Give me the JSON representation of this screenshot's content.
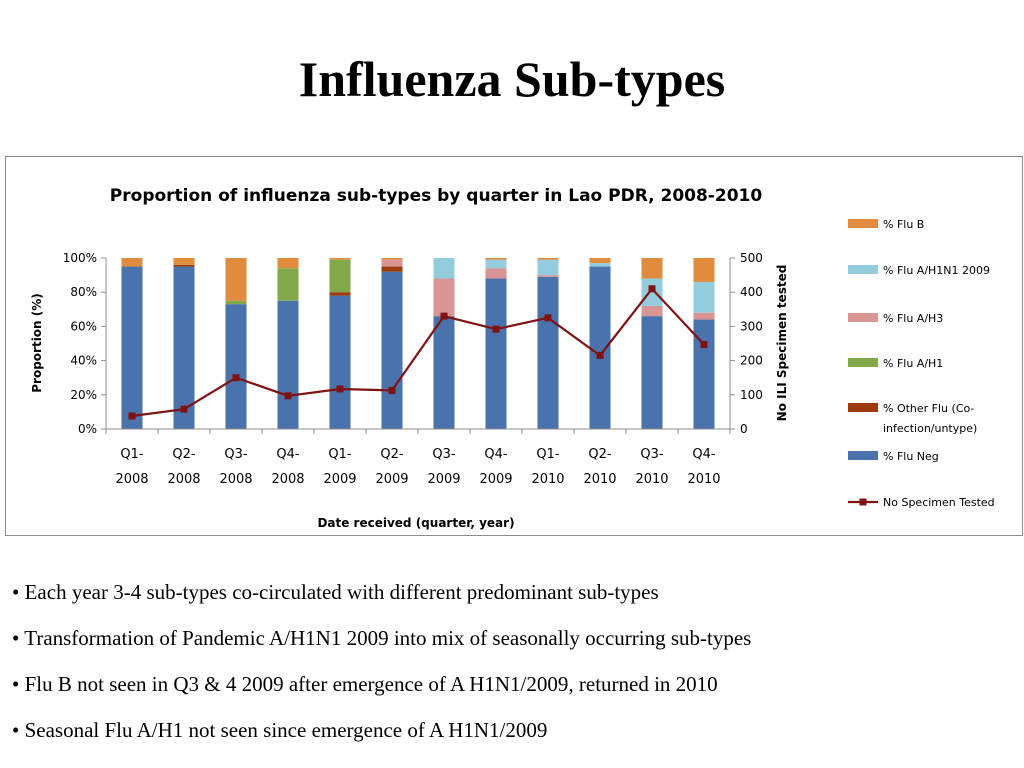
{
  "slide": {
    "title": "Influenza Sub-types",
    "bullets": [
      "Each year 3-4 sub-types co-circulated with different predominant sub-types",
      "Transformation of Pandemic A/H1N1 2009 into mix of seasonally occurring sub-types",
      "Flu B not seen in Q3 & 4 2009 after emergence of A H1N1/2009, returned in 2010",
      "Seasonal Flu A/H1 not seen since emergence of A H1N1/2009"
    ],
    "bullet_marker": "•"
  },
  "chart_data": {
    "type": "bar",
    "stacked": true,
    "title": "Proportion of influenza sub-types by quarter in Lao PDR, 2008-2010",
    "xlabel": "Date received (quarter, year)",
    "ylabel": "Proportion (%)",
    "y2label": "No ILI Specimen tested",
    "ylim": [
      0,
      100
    ],
    "y2lim": [
      0,
      500
    ],
    "yticks": [
      "0%",
      "20%",
      "40%",
      "60%",
      "80%",
      "100%"
    ],
    "y2ticks": [
      "0",
      "100",
      "200",
      "300",
      "400",
      "500"
    ],
    "categories": [
      [
        "Q1-",
        "2008"
      ],
      [
        "Q2-",
        "2008"
      ],
      [
        "Q3-",
        "2008"
      ],
      [
        "Q4-",
        "2008"
      ],
      [
        "Q1-",
        "2009"
      ],
      [
        "Q2-",
        "2009"
      ],
      [
        "Q3-",
        "2009"
      ],
      [
        "Q4-",
        "2009"
      ],
      [
        "Q1-",
        "2010"
      ],
      [
        "Q2-",
        "2010"
      ],
      [
        "Q3-",
        "2010"
      ],
      [
        "Q4-",
        "2010"
      ]
    ],
    "series": [
      {
        "name": "% Flu Neg",
        "color": "#4a72ad",
        "values": [
          95,
          95,
          73,
          75,
          78,
          92,
          66,
          88,
          89,
          95,
          66,
          64
        ]
      },
      {
        "name": "% Other Flu (Co-infection/untype)",
        "color": "#9b3a0e",
        "values": [
          0,
          1,
          0,
          0,
          2,
          3,
          0,
          0,
          0,
          0,
          0,
          0
        ]
      },
      {
        "name": "% Flu A/H1",
        "color": "#82a84a",
        "values": [
          0,
          0,
          2,
          19,
          19,
          0,
          0,
          0,
          0,
          0,
          0,
          0
        ]
      },
      {
        "name": "% Flu A/H3",
        "color": "#d99594",
        "values": [
          0,
          0,
          0,
          0,
          0,
          4,
          22,
          6,
          1,
          0,
          6,
          4
        ]
      },
      {
        "name": "% Flu A/H1N1 2009",
        "color": "#93cddd",
        "values": [
          0,
          0,
          0,
          0,
          0,
          0,
          12,
          5,
          9,
          2,
          16,
          18
        ]
      },
      {
        "name": "% Flu B",
        "color": "#e08b3e",
        "values": [
          5,
          4,
          25,
          6,
          1,
          1,
          0,
          1,
          1,
          3,
          12,
          14
        ]
      }
    ],
    "line_series": {
      "name": "No Specimen Tested",
      "axis": "secondary",
      "color": "#7f1313",
      "values": [
        38,
        58,
        150,
        97,
        117,
        113,
        330,
        292,
        325,
        215,
        410,
        247
      ]
    },
    "legend": "right",
    "legend_order": [
      "% Flu B",
      "% Flu A/H1N1 2009",
      "% Flu A/H3",
      "% Flu A/H1",
      "% Other Flu (Co-infection/untype)",
      "% Flu Neg",
      "No Specimen Tested"
    ],
    "legend_labels": [
      [
        "% Flu B"
      ],
      [
        "% Flu A/H1N1 2009"
      ],
      [
        "% Flu A/H3"
      ],
      [
        "% Flu A/H1"
      ],
      [
        "% Other Flu (Co-",
        "infection/untype)"
      ],
      [
        "% Flu Neg"
      ],
      [
        "No Specimen Tested"
      ]
    ],
    "grid": false
  }
}
